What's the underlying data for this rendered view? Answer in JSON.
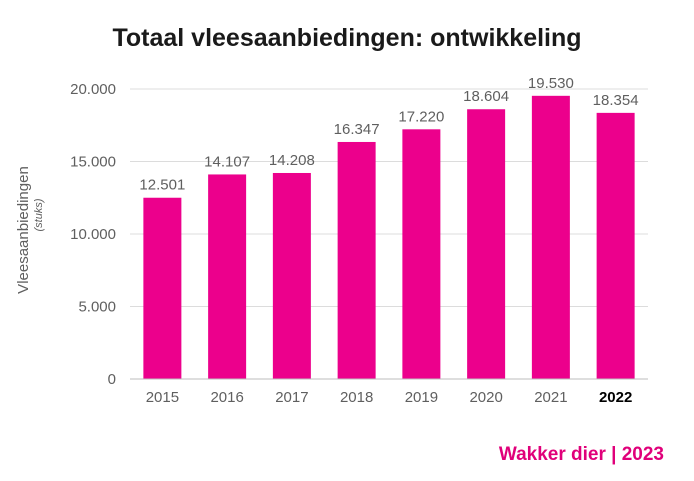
{
  "chart_data": {
    "type": "bar",
    "title": "Totaal vleesaanbiedingen: ontwikkeling",
    "ylabel": "Vleesaanbiedingen",
    "ylabel_sub": "(stuks)",
    "xlabel": "",
    "categories": [
      "2015",
      "2016",
      "2017",
      "2018",
      "2019",
      "2020",
      "2021",
      "2022"
    ],
    "values": [
      12501,
      14107,
      14208,
      16347,
      17220,
      18604,
      19530,
      18354
    ],
    "value_labels": [
      "12.501",
      "14.107",
      "14.208",
      "16.347",
      "17.220",
      "18.604",
      "19.530",
      "18.354"
    ],
    "highlighted_category": "2022",
    "ylim": [
      0,
      20000
    ],
    "yticks": [
      0,
      5000,
      10000,
      15000,
      20000
    ],
    "ytick_labels": [
      "0",
      "5.000",
      "10.000",
      "15.000",
      "20.000"
    ],
    "grid": true,
    "bar_color": "#ec008c"
  },
  "footer": {
    "brand": "Wakker dier | 2023",
    "color": "#e0007a"
  }
}
